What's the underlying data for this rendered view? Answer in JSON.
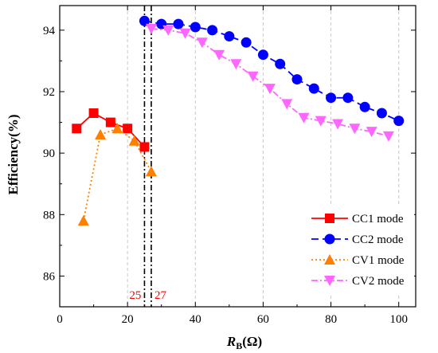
{
  "chart_data": {
    "type": "line",
    "xlabel_main": "R",
    "xlabel_sub": "B",
    "xlabel_unit": "(Ω)",
    "ylabel": "Efficiency(%)",
    "xlim": [
      0,
      105
    ],
    "ylim": [
      85,
      94.8
    ],
    "xticks": [
      0,
      20,
      40,
      60,
      80,
      100
    ],
    "yticks": [
      86,
      88,
      90,
      92,
      94
    ],
    "grid": "vertical dashed",
    "legend_position": "bottom-right",
    "series": [
      {
        "name": "CC1 mode",
        "color": "#ff0000",
        "marker": "square",
        "dash": "solid",
        "x": [
          5,
          10,
          15,
          20,
          25
        ],
        "y": [
          90.8,
          91.3,
          91.0,
          90.8,
          90.2
        ]
      },
      {
        "name": "CC2 mode",
        "color": "#0000ff",
        "marker": "circle",
        "dash": "long-dash",
        "x": [
          25,
          30,
          35,
          40,
          45,
          50,
          55,
          60,
          65,
          70,
          75,
          80,
          85,
          90,
          95,
          100
        ],
        "y": [
          94.3,
          94.2,
          94.2,
          94.1,
          94.0,
          93.8,
          93.6,
          93.2,
          92.9,
          92.4,
          92.1,
          91.8,
          91.8,
          91.5,
          91.3,
          91.05
        ]
      },
      {
        "name": "CV1 mode",
        "color": "#ff8000",
        "marker": "triangle-up",
        "dash": "dotted",
        "x": [
          7,
          12,
          17,
          22,
          27
        ],
        "y": [
          87.8,
          90.6,
          90.8,
          90.4,
          89.4
        ]
      },
      {
        "name": "CV2 mode",
        "color": "#ff66ff",
        "marker": "triangle-down",
        "dash": "dash-dot",
        "x": [
          27,
          32,
          37,
          42,
          47,
          52,
          57,
          62,
          67,
          72,
          77,
          82,
          87,
          92,
          97
        ],
        "y": [
          94.05,
          94.0,
          93.9,
          93.6,
          93.2,
          92.9,
          92.5,
          92.1,
          91.6,
          91.15,
          91.05,
          90.95,
          90.8,
          90.7,
          90.55
        ]
      }
    ],
    "vlines": [
      25,
      27
    ],
    "annotations": [
      {
        "text": "25",
        "x": 25,
        "color": "#ff0000"
      },
      {
        "text": "27",
        "x": 27,
        "color": "#ff0000"
      }
    ]
  }
}
